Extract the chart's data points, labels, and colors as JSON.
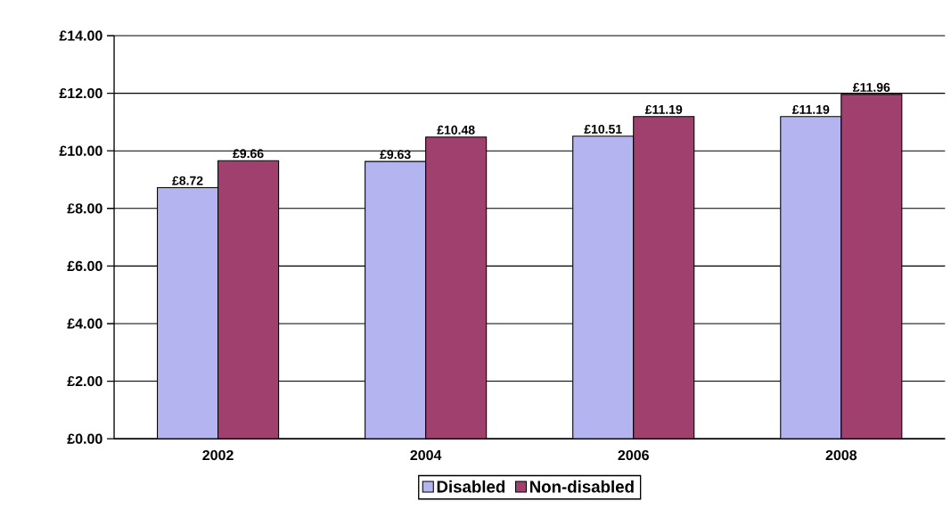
{
  "chart_data": {
    "type": "bar",
    "categories": [
      "2002",
      "2004",
      "2006",
      "2008"
    ],
    "series": [
      {
        "name": "Disabled",
        "color": "#b4b4f0",
        "values": [
          8.72,
          9.63,
          10.51,
          11.19
        ],
        "value_labels": [
          "£8.72",
          "£9.63",
          "£10.51",
          "£11.19"
        ]
      },
      {
        "name": "Non-disabled",
        "color": "#a0406e",
        "values": [
          9.66,
          10.48,
          11.19,
          11.96
        ],
        "value_labels": [
          "£9.66",
          "£10.48",
          "£11.19",
          "£11.96"
        ]
      }
    ],
    "ylim": [
      0,
      14
    ],
    "yticks": [
      {
        "value": 0,
        "label": "£0.00"
      },
      {
        "value": 2,
        "label": "£2.00"
      },
      {
        "value": 4,
        "label": "£4.00"
      },
      {
        "value": 6,
        "label": "£6.00"
      },
      {
        "value": 8,
        "label": "£8.00"
      },
      {
        "value": 10,
        "label": "£10.00"
      },
      {
        "value": 12,
        "label": "£12.00"
      },
      {
        "value": 14,
        "label": "£14.00"
      }
    ],
    "grid": "y",
    "legend": "bottom"
  }
}
